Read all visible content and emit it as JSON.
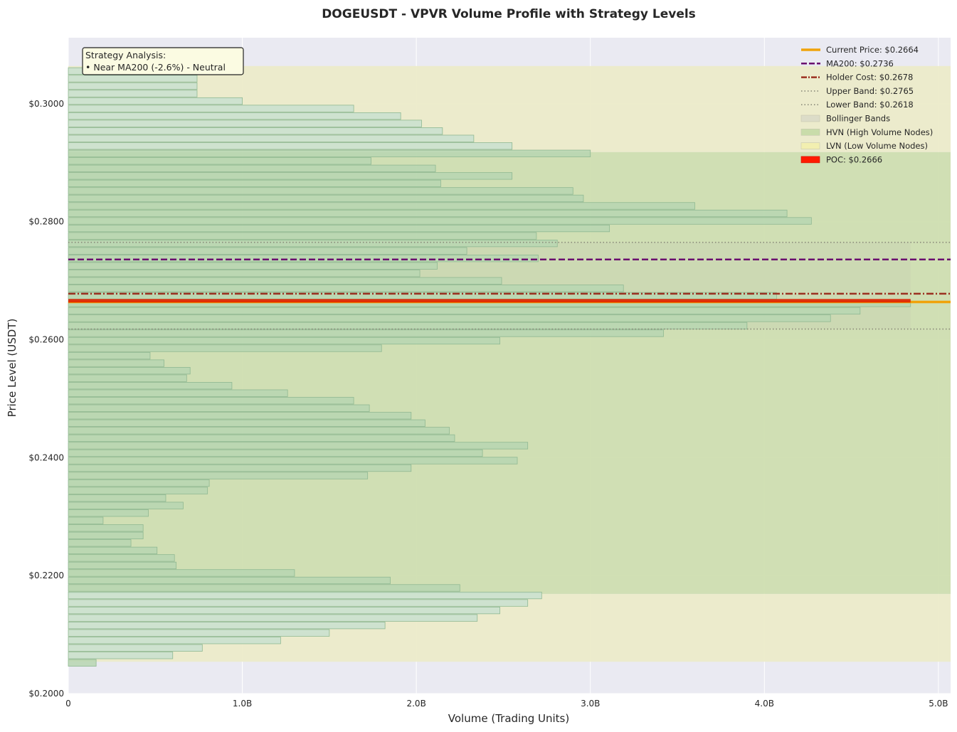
{
  "chart_data": {
    "type": "bar",
    "orientation": "horizontal",
    "title": "DOGEUSDT - VPVR Volume Profile with Strategy Levels",
    "xlabel": "Volume (Trading Units)",
    "ylabel": "Price Level (USDT)",
    "xlim": [
      0,
      5070000000
    ],
    "ylim": [
      0.2,
      0.3112
    ],
    "xticks": [
      0,
      1000000000,
      2000000000,
      3000000000,
      4000000000,
      5000000000
    ],
    "xtick_labels": [
      "0",
      "1.0B",
      "2.0B",
      "3.0B",
      "4.0B",
      "5.0B"
    ],
    "yticks": [
      0.2,
      0.22,
      0.24,
      0.26,
      0.28,
      0.3
    ],
    "ytick_labels": [
      "$0.2000",
      "$0.2200",
      "$0.2400",
      "$0.2600",
      "$0.2800",
      "$0.3000"
    ],
    "grid": true,
    "legend_position": "top-right",
    "bin_height": 0.00127,
    "price_levels": [
      0.20521,
      0.20648,
      0.20775,
      0.20902,
      0.21029,
      0.21156,
      0.21283,
      0.2141,
      0.21537,
      0.21664,
      0.21791,
      0.21918,
      0.22045,
      0.22172,
      0.22299,
      0.22426,
      0.22553,
      0.2268,
      0.22807,
      0.22934,
      0.23061,
      0.23188,
      0.23315,
      0.23442,
      0.23569,
      0.23696,
      0.23823,
      0.2395,
      0.24077,
      0.24204,
      0.24331,
      0.24458,
      0.24585,
      0.24712,
      0.24839,
      0.24966,
      0.25093,
      0.2522,
      0.25347,
      0.25474,
      0.25601,
      0.25728,
      0.25855,
      0.25982,
      0.26109,
      0.26236,
      0.26363,
      0.2649,
      0.26617,
      0.26744,
      0.26871,
      0.26998,
      0.27125,
      0.27252,
      0.27379,
      0.27506,
      0.27633,
      0.2776,
      0.27887,
      0.28014,
      0.28141,
      0.28268,
      0.28395,
      0.28522,
      0.28649,
      0.28776,
      0.28903,
      0.2903,
      0.29157,
      0.29284,
      0.29411,
      0.29538,
      0.29665,
      0.29792,
      0.29919,
      0.30046,
      0.30173,
      0.303,
      0.30427,
      0.30554
    ],
    "volumes": [
      160000000,
      600000000,
      770000000,
      1220000000,
      1500000000,
      1820000000,
      2350000000,
      2480000000,
      2640000000,
      2720000000,
      2250000000,
      1850000000,
      1300000000,
      620000000,
      610000000,
      510000000,
      360000000,
      430000000,
      430000000,
      200000000,
      460000000,
      660000000,
      560000000,
      800000000,
      810000000,
      1720000000,
      1970000000,
      2580000000,
      2380000000,
      2640000000,
      2220000000,
      2190000000,
      2050000000,
      1970000000,
      1730000000,
      1640000000,
      1260000000,
      940000000,
      680000000,
      700000000,
      550000000,
      470000000,
      1800000000,
      2480000000,
      3420000000,
      3900000000,
      4380000000,
      4550000000,
      4840000000,
      4070000000,
      3190000000,
      2490000000,
      2020000000,
      2120000000,
      2700000000,
      2290000000,
      2810000000,
      2690000000,
      3110000000,
      4270000000,
      4130000000,
      3600000000,
      2960000000,
      2900000000,
      2140000000,
      2550000000,
      2110000000,
      1740000000,
      3000000000,
      2550000000,
      2330000000,
      2150000000,
      2030000000,
      1910000000,
      1640000000,
      1000000000,
      740000000,
      740000000,
      740000000,
      740000000
    ],
    "zones": {
      "lvn_ranges": [
        [
          0.2054,
          0.2169
        ],
        [
          0.2918,
          0.3064
        ]
      ],
      "hvn_range": [
        0.2169,
        0.2918
      ]
    },
    "bollinger": {
      "upper": 0.2765,
      "lower": 0.2618
    },
    "levels": {
      "current_price": 0.2664,
      "ma200": 0.2736,
      "holder_cost": 0.2678,
      "upper_band": 0.2765,
      "lower_band": 0.2618,
      "poc": 0.2666
    },
    "legend": [
      {
        "key": "current",
        "label": "Current Price: $0.2664",
        "style": "line-solid",
        "color": "#f0a30a"
      },
      {
        "key": "ma200",
        "label": "MA200: $0.2736",
        "style": "line-dash",
        "color": "#6a0f6e"
      },
      {
        "key": "holder",
        "label": "Holder Cost: $0.2678",
        "style": "line-dashdot",
        "color": "#9b3020"
      },
      {
        "key": "upper",
        "label": "Upper Band: $0.2765",
        "style": "line-dot",
        "color": "#8a8a7a"
      },
      {
        "key": "lower",
        "label": "Lower Band: $0.2618",
        "style": "line-dot",
        "color": "#8a8a7a"
      },
      {
        "key": "bb",
        "label": "Bollinger Bands",
        "style": "patch",
        "color": "#dcdcc8"
      },
      {
        "key": "hvn",
        "label": "HVN (High Volume Nodes)",
        "style": "patch",
        "color": "#c9dcaa"
      },
      {
        "key": "lvn",
        "label": "LVN (Low Volume Nodes)",
        "style": "patch",
        "color": "#f2efb0"
      },
      {
        "key": "poc",
        "label": "POC: $0.2666",
        "style": "patch",
        "color": "#ff1a00"
      }
    ],
    "annotation": {
      "title": "Strategy Analysis:",
      "line": "• Near MA200 (-2.6%) - Neutral"
    },
    "colors": {
      "plot_bg": "#eaeaf2",
      "lvn_fill": "#ecebc9",
      "hvn_fill": "#cfdeb0",
      "bb_fill": "#c9d3b2",
      "bar_fill": "#b7d6b2",
      "bar_fill_lvn": "#c9e0cf",
      "bar_edge": "#8fb892",
      "current": "#f0a30a",
      "ma200": "#6a0f6e",
      "holder": "#9b3020",
      "band": "#8a8a7a",
      "poc": "#e02000"
    }
  }
}
